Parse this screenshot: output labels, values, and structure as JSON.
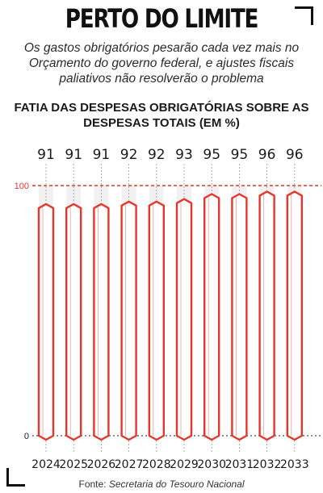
{
  "header": {
    "title": "PERTO DO LIMITE",
    "subtitle": "Os gastos obrigatórios pesarão cada vez mais no Orçamento do governo federal, e ajustes fiscais paliativos não resolverão o problema"
  },
  "footer": {
    "source_prefix": "Fonte:",
    "source_name": "Secretaria do Tesouro Nacional"
  },
  "colors": {
    "accent": "#e8352a",
    "guide": "#e6e6e6",
    "text": "#1a1a1a"
  },
  "chart_data": {
    "type": "bar",
    "title": "FATIA DAS DESPESAS OBRIGATÓRIAS SOBRE AS DESPESAS TOTAIS (EM %)",
    "categories": [
      "2024",
      "2025",
      "2026",
      "2027",
      "2028",
      "2029",
      "2030",
      "2031",
      "2032",
      "2033"
    ],
    "values": [
      91,
      91,
      91,
      92,
      92,
      93,
      95,
      95,
      96,
      96
    ],
    "ylim": [
      0,
      100
    ],
    "reference_lines": [
      {
        "value": 100,
        "label": "100",
        "color": "#e8352a"
      },
      {
        "value": 0,
        "label": "0",
        "color": "#1a1a1a"
      }
    ],
    "grid": false,
    "legend": "none",
    "xlabel": "",
    "ylabel": ""
  }
}
